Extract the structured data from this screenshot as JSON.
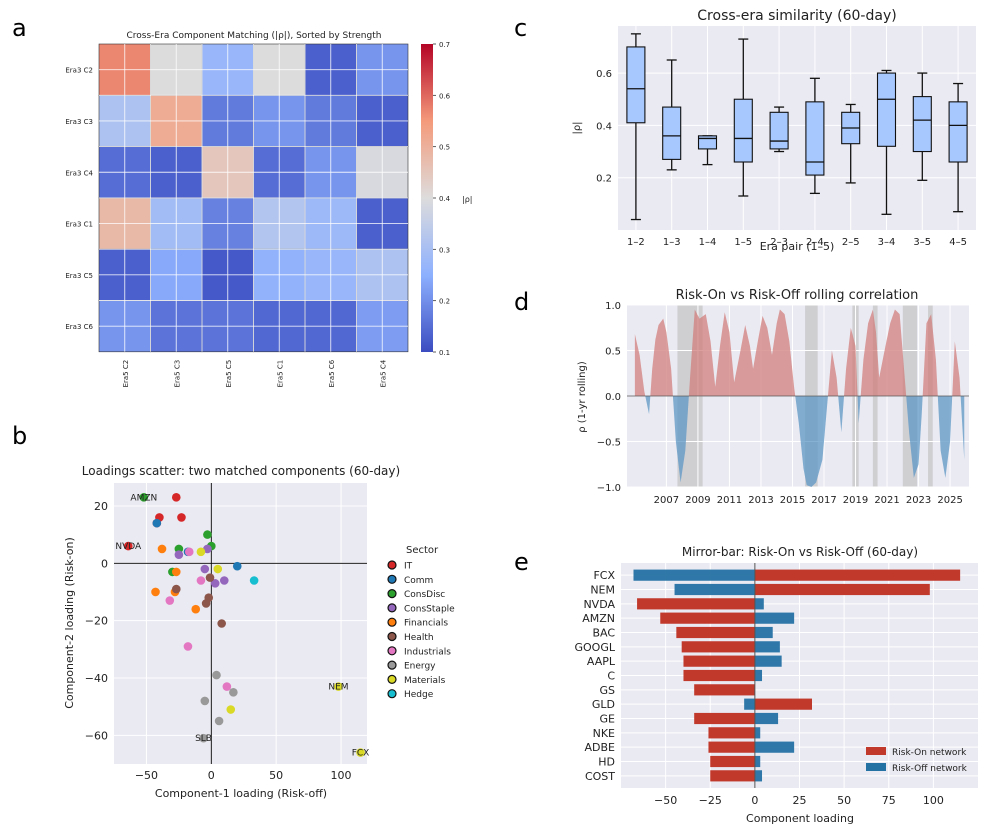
{
  "panel_letters": [
    "a",
    "b",
    "c",
    "d",
    "e"
  ],
  "chart_data": [
    {
      "id": "a",
      "type": "heatmap",
      "title": "Cross-Era Component Matching (|ρ|), Sorted by Strength",
      "row_labels": [
        "Era3 C2",
        "Era3 C3",
        "Era3 C4",
        "Era3 C1",
        "Era3 C5",
        "Era3 C6"
      ],
      "col_labels": [
        "Era5 C2",
        "Era5 C3",
        "Era5 C5",
        "Era5 C1",
        "Era5 C6",
        "Era5 C4"
      ],
      "values": [
        [
          0.57,
          0.4,
          0.27,
          0.4,
          0.13,
          0.21
        ],
        [
          0.31,
          0.51,
          0.17,
          0.21,
          0.17,
          0.13
        ],
        [
          0.15,
          0.13,
          0.45,
          0.15,
          0.21,
          0.39
        ],
        [
          0.48,
          0.29,
          0.18,
          0.32,
          0.28,
          0.13
        ],
        [
          0.13,
          0.24,
          0.12,
          0.26,
          0.27,
          0.31
        ],
        [
          0.21,
          0.16,
          0.16,
          0.14,
          0.14,
          0.22
        ]
      ],
      "colorbar": {
        "label": "|ρ|",
        "min": 0.1,
        "max": 0.7,
        "ticks": [
          "0.1",
          "0.2",
          "0.3",
          "0.4",
          "0.5",
          "0.6",
          "0.7"
        ]
      }
    },
    {
      "id": "c",
      "type": "box",
      "title": "Cross-era similarity (60-day)",
      "xlabel": "Era pair (1–5)",
      "ylabel": "|ρ|",
      "ylim": [
        0.0,
        0.78
      ],
      "yticks": [
        "0.2",
        "0.4",
        "0.6"
      ],
      "categories": [
        "1–2",
        "1–3",
        "1–4",
        "1–5",
        "2–3",
        "2–4",
        "2–5",
        "3–4",
        "3–5",
        "4–5"
      ],
      "boxes": [
        {
          "min": 0.04,
          "q1": 0.41,
          "median": 0.54,
          "q3": 0.7,
          "max": 0.75
        },
        {
          "min": 0.23,
          "q1": 0.27,
          "median": 0.36,
          "q3": 0.47,
          "max": 0.65
        },
        {
          "min": 0.25,
          "q1": 0.31,
          "median": 0.35,
          "q3": 0.36,
          "max": 0.36
        },
        {
          "min": 0.13,
          "q1": 0.26,
          "median": 0.35,
          "q3": 0.5,
          "max": 0.73
        },
        {
          "min": 0.3,
          "q1": 0.31,
          "median": 0.34,
          "q3": 0.45,
          "max": 0.47
        },
        {
          "min": 0.14,
          "q1": 0.21,
          "median": 0.26,
          "q3": 0.49,
          "max": 0.58
        },
        {
          "min": 0.18,
          "q1": 0.33,
          "median": 0.39,
          "q3": 0.45,
          "max": 0.48
        },
        {
          "min": 0.06,
          "q1": 0.32,
          "median": 0.5,
          "q3": 0.6,
          "max": 0.61
        },
        {
          "min": 0.19,
          "q1": 0.3,
          "median": 0.42,
          "q3": 0.51,
          "max": 0.6
        },
        {
          "min": 0.07,
          "q1": 0.26,
          "median": 0.4,
          "q3": 0.49,
          "max": 0.56
        }
      ]
    },
    {
      "id": "d",
      "type": "area",
      "title": "Risk-On vs Risk-Off rolling correlation",
      "ylabel": "ρ  (1-yr rolling)",
      "xlim": [
        2004.5,
        2026.2
      ],
      "ylim": [
        -1.0,
        1.0
      ],
      "yticks": [
        "−1.0",
        "−0.5",
        "0.0",
        "0.5",
        "1.0"
      ],
      "xticks": [
        "2007",
        "2009",
        "2011",
        "2013",
        "2015",
        "2017",
        "2019",
        "2021",
        "2023",
        "2025"
      ],
      "shaded_periods": [
        [
          2007.7,
          2009.3
        ],
        [
          2015.8,
          2016.6
        ],
        [
          2018.8,
          2019.2
        ],
        [
          2020.1,
          2020.4
        ],
        [
          2022.0,
          2022.9
        ],
        [
          2023.6,
          2023.9
        ]
      ],
      "x": [
        2005.0,
        2005.3,
        2005.6,
        2005.9,
        2006.1,
        2006.3,
        2006.5,
        2006.8,
        2007.0,
        2007.3,
        2007.6,
        2007.9,
        2008.2,
        2008.5,
        2008.8,
        2009.1,
        2009.5,
        2009.8,
        2010.1,
        2010.4,
        2010.7,
        2011.0,
        2011.3,
        2011.7,
        2012.0,
        2012.3,
        2012.5,
        2012.8,
        2013.1,
        2013.4,
        2013.7,
        2014.0,
        2014.2,
        2014.5,
        2014.8,
        2015.1,
        2015.4,
        2015.7,
        2015.9,
        2016.2,
        2016.5,
        2016.9,
        2017.2,
        2017.5,
        2017.8,
        2018.1,
        2018.4,
        2018.7,
        2019.0,
        2019.2,
        2019.5,
        2019.8,
        2020.1,
        2020.3,
        2020.5,
        2020.9,
        2021.2,
        2021.5,
        2021.8,
        2022.1,
        2022.4,
        2022.7,
        2023.0,
        2023.2,
        2023.5,
        2023.8,
        2024.1,
        2024.4,
        2024.7,
        2025.0,
        2025.3,
        2025.6,
        2025.9
      ],
      "y": [
        0.68,
        0.45,
        0.05,
        -0.2,
        0.3,
        0.62,
        0.78,
        0.85,
        0.7,
        0.3,
        -0.5,
        -0.95,
        -0.6,
        0.2,
        0.95,
        0.85,
        0.9,
        0.6,
        0.1,
        0.55,
        0.92,
        0.7,
        0.15,
        0.5,
        0.78,
        0.55,
        0.3,
        0.6,
        0.88,
        0.75,
        0.45,
        0.8,
        0.95,
        0.9,
        0.6,
        0.1,
        -0.3,
        -0.8,
        -0.98,
        -1.0,
        -0.95,
        -0.7,
        -0.1,
        0.5,
        0.2,
        -0.4,
        0.3,
        0.75,
        0.55,
        -0.3,
        0.4,
        0.8,
        0.95,
        0.7,
        0.2,
        0.55,
        0.8,
        0.95,
        0.9,
        0.25,
        -0.4,
        -0.9,
        -0.75,
        -0.2,
        0.8,
        0.9,
        0.4,
        -0.6,
        -0.9,
        -0.5,
        0.6,
        0.2,
        -0.7
      ]
    },
    {
      "id": "b",
      "type": "scatter",
      "title": "Loadings scatter: two matched components (60-day)",
      "xlabel": "Component-1 loading  (Risk-off)",
      "ylabel": "Component-2 loading  (Risk-on)",
      "xlim": [
        -75,
        120
      ],
      "ylim": [
        -70,
        28
      ],
      "xticks": [
        "−50",
        "0",
        "50",
        "100"
      ],
      "yticks": [
        "−60",
        "−40",
        "−20",
        "0",
        "20"
      ],
      "legend_title": "Sector",
      "sectors": [
        {
          "name": "IT",
          "color": "#d62728"
        },
        {
          "name": "Comm",
          "color": "#1f77b4"
        },
        {
          "name": "ConsDisc",
          "color": "#2ca02c"
        },
        {
          "name": "ConsStaple",
          "color": "#9467bd"
        },
        {
          "name": "Financials",
          "color": "#ff7f0e"
        },
        {
          "name": "Health",
          "color": "#8c564b"
        },
        {
          "name": "Industrials",
          "color": "#e377c2"
        },
        {
          "name": "Energy",
          "color": "#999999"
        },
        {
          "name": "Materials",
          "color": "#d9d926"
        },
        {
          "name": "Hedge",
          "color": "#17becf"
        }
      ],
      "points": [
        {
          "x": -64,
          "y": 6,
          "s": 0,
          "label": "NVDA"
        },
        {
          "x": -27,
          "y": 23,
          "s": 0
        },
        {
          "x": -23,
          "y": 16,
          "s": 0
        },
        {
          "x": -40,
          "y": 16,
          "s": 0
        },
        {
          "x": -42,
          "y": 14,
          "s": 0
        },
        {
          "x": -42,
          "y": 14,
          "s": 1
        },
        {
          "x": -18,
          "y": 4,
          "s": 1
        },
        {
          "x": 20,
          "y": -1,
          "s": 1
        },
        {
          "x": -52,
          "y": 23,
          "s": 2,
          "label": "AMZN"
        },
        {
          "x": -3,
          "y": 10,
          "s": 2
        },
        {
          "x": 0,
          "y": 6,
          "s": 2
        },
        {
          "x": -25,
          "y": 5,
          "s": 2
        },
        {
          "x": -30,
          "y": -3,
          "s": 2
        },
        {
          "x": -3,
          "y": 5,
          "s": 3
        },
        {
          "x": -25,
          "y": 3,
          "s": 3
        },
        {
          "x": -5,
          "y": -2,
          "s": 3
        },
        {
          "x": 10,
          "y": -6,
          "s": 3
        },
        {
          "x": 3,
          "y": -7,
          "s": 3
        },
        {
          "x": -38,
          "y": 5,
          "s": 4
        },
        {
          "x": -27,
          "y": -3,
          "s": 4
        },
        {
          "x": -28,
          "y": -10,
          "s": 4
        },
        {
          "x": -43,
          "y": -10,
          "s": 4
        },
        {
          "x": -12,
          "y": -16,
          "s": 4
        },
        {
          "x": -27,
          "y": -9,
          "s": 5
        },
        {
          "x": -2,
          "y": -12,
          "s": 5
        },
        {
          "x": -4,
          "y": -14,
          "s": 5
        },
        {
          "x": 8,
          "y": -21,
          "s": 5
        },
        {
          "x": -1,
          "y": -5,
          "s": 5
        },
        {
          "x": -17,
          "y": 4,
          "s": 6
        },
        {
          "x": -32,
          "y": -13,
          "s": 6
        },
        {
          "x": -18,
          "y": -29,
          "s": 6
        },
        {
          "x": -8,
          "y": -6,
          "s": 6
        },
        {
          "x": 12,
          "y": -43,
          "s": 6
        },
        {
          "x": 4,
          "y": -39,
          "s": 7
        },
        {
          "x": -5,
          "y": -48,
          "s": 7
        },
        {
          "x": 17,
          "y": -45,
          "s": 7
        },
        {
          "x": 6,
          "y": -55,
          "s": 7
        },
        {
          "x": -6,
          "y": -61,
          "s": 7,
          "label": "SLB"
        },
        {
          "x": 98,
          "y": -43,
          "s": 8,
          "label": "NEM"
        },
        {
          "x": 115,
          "y": -66,
          "s": 8,
          "label": "FCX"
        },
        {
          "x": -8,
          "y": 4,
          "s": 8
        },
        {
          "x": 5,
          "y": -2,
          "s": 8
        },
        {
          "x": 15,
          "y": -51,
          "s": 8
        },
        {
          "x": 33,
          "y": -6,
          "s": 9
        }
      ]
    },
    {
      "id": "e",
      "type": "bar",
      "orientation": "horizontal",
      "title": "Mirror-bar: Risk-On vs Risk-Off (60-day)",
      "xlabel": "Component loading",
      "xlim": [
        -75,
        125
      ],
      "xticks": [
        "−50",
        "−25",
        "0",
        "25",
        "50",
        "75",
        "100"
      ],
      "categories": [
        "FCX",
        "NEM",
        "NVDA",
        "AMZN",
        "BAC",
        "GOOGL",
        "AAPL",
        "C",
        "GS",
        "GLD",
        "GE",
        "NKE",
        "ADBE",
        "HD",
        "COST"
      ],
      "series": [
        {
          "name": "Risk-On network",
          "color": "#c0392b",
          "values": [
            115,
            98,
            -66,
            -53,
            -44,
            -41,
            -40,
            -40,
            -34,
            32,
            -34,
            -26,
            -26,
            -25,
            -25
          ]
        },
        {
          "name": "Risk-Off network",
          "color": "#2471a3",
          "values": [
            -68,
            -45,
            5,
            22,
            10,
            14,
            15,
            4,
            0,
            -6,
            13,
            3,
            22,
            3,
            4
          ]
        }
      ]
    }
  ]
}
